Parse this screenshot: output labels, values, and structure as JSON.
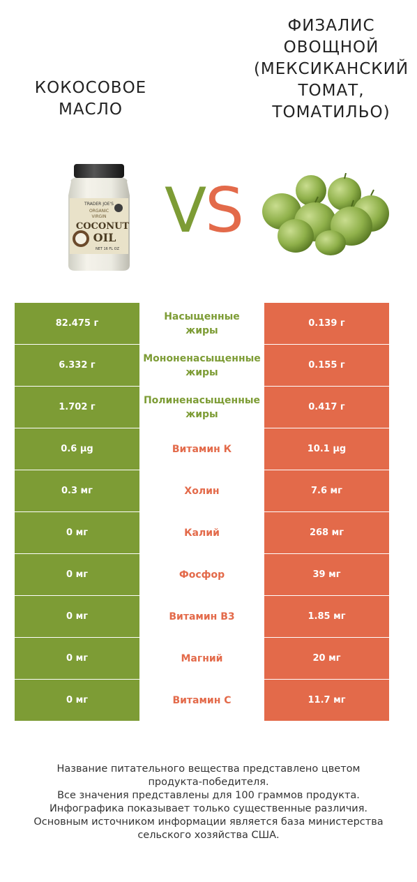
{
  "header": {
    "left_title": "Кокосовое\nмасло",
    "right_title": "Физалис\nовощной\n(Мексиканский\nтомат,\nтоматильо)",
    "vs_v": "V",
    "vs_s": "S"
  },
  "colors": {
    "left_winner": "#7d9c35",
    "right_winner": "#e36a4a"
  },
  "rows": [
    {
      "left": "82.475 г",
      "name_lines": [
        "Насыщенные",
        "жиры"
      ],
      "right": "0.139 г",
      "winner": "left"
    },
    {
      "left": "6.332 г",
      "name_lines": [
        "Мононенасыщенные",
        "жиры"
      ],
      "right": "0.155 г",
      "winner": "left"
    },
    {
      "left": "1.702 г",
      "name_lines": [
        "Полиненасыщенные",
        "жиры"
      ],
      "right": "0.417 г",
      "winner": "left"
    },
    {
      "left": "0.6 µg",
      "name_lines": [
        "Витамин К"
      ],
      "right": "10.1 µg",
      "winner": "right"
    },
    {
      "left": "0.3 мг",
      "name_lines": [
        "Холин"
      ],
      "right": "7.6 мг",
      "winner": "right"
    },
    {
      "left": "0 мг",
      "name_lines": [
        "Калий"
      ],
      "right": "268 мг",
      "winner": "right"
    },
    {
      "left": "0 мг",
      "name_lines": [
        "Фосфор"
      ],
      "right": "39 мг",
      "winner": "right"
    },
    {
      "left": "0 мг",
      "name_lines": [
        "Витамин B3"
      ],
      "right": "1.85 мг",
      "winner": "right"
    },
    {
      "left": "0 мг",
      "name_lines": [
        "Магний"
      ],
      "right": "20 мг",
      "winner": "right"
    },
    {
      "left": "0 мг",
      "name_lines": [
        "Витамин C"
      ],
      "right": "11.7 мг",
      "winner": "right"
    }
  ],
  "jar_label": {
    "brand": "TRADER JOE'S",
    "line1": "ORGANIC",
    "line2": "VIRGIN",
    "line3": "COCONUT",
    "line4": "OIL",
    "net": "NET 16 FL OZ"
  },
  "footer": {
    "lines": [
      "Название питательного вещества представлено цветом",
      "продукта-победителя.",
      "Все значения представлены для 100 граммов продукта.",
      "Инфографика показывает только существенные различия.",
      "Основным источником информации является база министерства",
      "сельского хозяйства США."
    ]
  }
}
